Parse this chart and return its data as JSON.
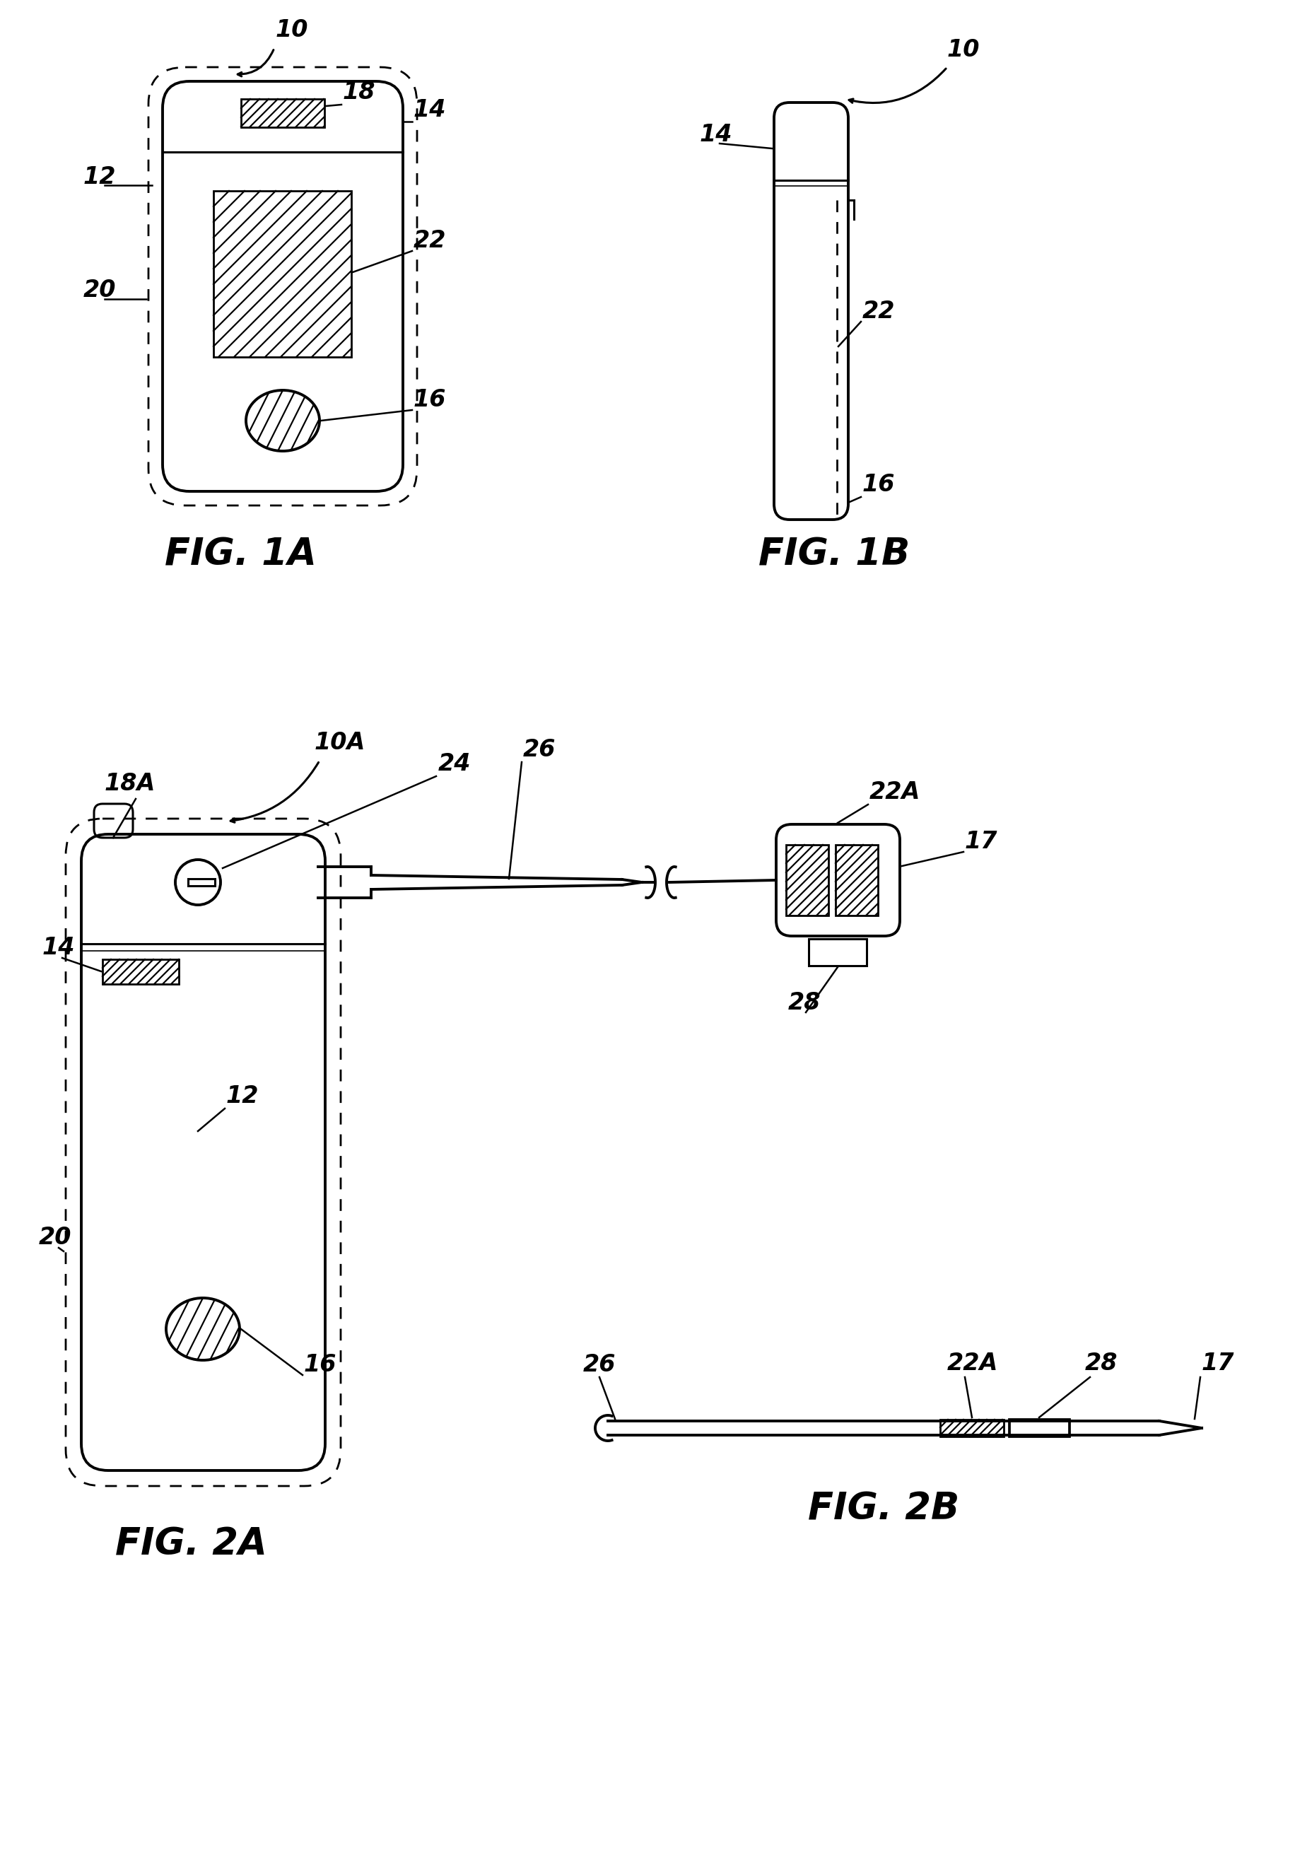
{
  "bg_color": "#ffffff",
  "line_color": "#000000",
  "fig1a_label": "FIG. 1A",
  "fig1b_label": "FIG. 1B",
  "fig2a_label": "FIG. 2A",
  "fig2b_label": "FIG. 2B",
  "label_fontsize": 38,
  "ref_fontsize": 24
}
